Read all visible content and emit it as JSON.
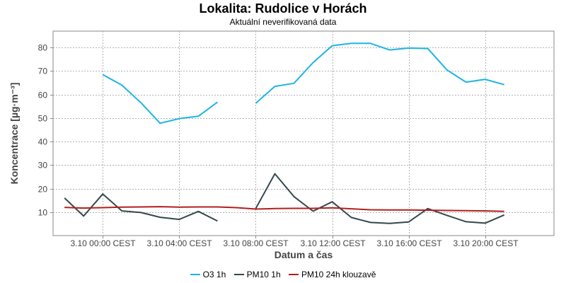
{
  "title": "Lokalita: Rudolice v Horách",
  "subtitle": "Aktuální neverifikovaná data",
  "chart_data": {
    "type": "line",
    "xlabel": "Datum a čas",
    "ylabel": "Koncentrace [µg·m⁻³]",
    "ylim": [
      0,
      87
    ],
    "yticks": [
      10,
      20,
      30,
      40,
      50,
      60,
      70,
      80
    ],
    "xlim": [
      -2.6,
      23.6
    ],
    "xticks": [
      {
        "x": 0,
        "label": "3.10 00:00 CEST"
      },
      {
        "x": 4,
        "label": "3.10 04:00 CEST"
      },
      {
        "x": 8,
        "label": "3.10 08:00 CEST"
      },
      {
        "x": 12,
        "label": "3.10 12:00 CEST"
      },
      {
        "x": 16,
        "label": "3.10 16:00 CEST"
      },
      {
        "x": 20,
        "label": "3.10 20:00 CEST"
      }
    ],
    "grid": true,
    "legend_position": "bottom",
    "series": [
      {
        "name": "O3 1h",
        "color": "#1eb4e6",
        "x": [
          0,
          1,
          2,
          3,
          4,
          5,
          6,
          8,
          9,
          10,
          11,
          12,
          13,
          14,
          15,
          16,
          17,
          18,
          19,
          20,
          21
        ],
        "values": [
          68.5,
          64,
          56.5,
          47.8,
          49.8,
          50.8,
          56.8,
          56.3,
          63.5,
          64.8,
          73.6,
          80.8,
          81.8,
          81.8,
          79,
          79.8,
          79.6,
          70.5,
          65.3,
          66.5,
          64.2
        ]
      },
      {
        "name": "PM10 1h",
        "color": "#34484d",
        "x": [
          -2,
          -1,
          0,
          1,
          2,
          3,
          4,
          5,
          6,
          8,
          9,
          10,
          11,
          12,
          13,
          14,
          15,
          16,
          17,
          18,
          19,
          20,
          21
        ],
        "values": [
          16,
          8.3,
          17.7,
          10.5,
          9.8,
          7.8,
          6.9,
          10.3,
          6.2,
          11.5,
          26.3,
          16.6,
          10.4,
          14.4,
          7.7,
          5.6,
          5.2,
          5.8,
          11.5,
          8.6,
          5.9,
          5.3,
          8.8
        ]
      },
      {
        "name": "PM10 24h klouzavě",
        "color": "#b31f1f",
        "x": [
          -2,
          -1,
          0,
          1,
          2,
          3,
          4,
          5,
          6,
          7,
          8,
          9,
          10,
          11,
          12,
          13,
          14,
          15,
          16,
          17,
          18,
          19,
          20,
          21
        ],
        "values": [
          12,
          11.7,
          11.9,
          12.1,
          12.2,
          12.3,
          12.1,
          12.2,
          12.2,
          11.9,
          11.3,
          11.5,
          11.6,
          11.6,
          11.8,
          11.4,
          11,
          10.9,
          10.9,
          10.8,
          10.7,
          10.6,
          10.5,
          10.3
        ]
      }
    ]
  }
}
